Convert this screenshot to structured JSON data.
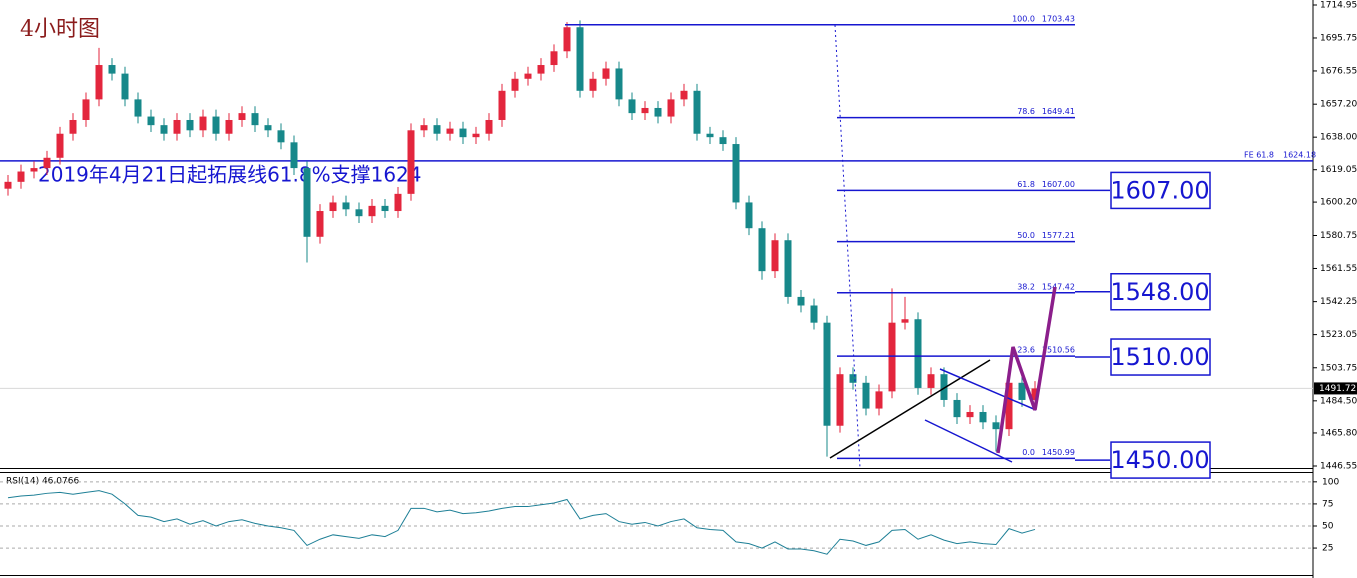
{
  "chart_data": [
    {
      "type": "candlestick",
      "title": "4小时图",
      "annotation": "2019年4月21日起拓展线61.8%支撑1624",
      "up_color": "#e3263d",
      "down_color": "#17888a",
      "open": [
        1608,
        1612,
        1618,
        1620,
        1626,
        1640,
        1648,
        1660,
        1680,
        1675,
        1660,
        1650,
        1645,
        1640,
        1648,
        1642,
        1650,
        1640,
        1648,
        1652,
        1645,
        1642,
        1635,
        1620,
        1580,
        1595,
        1600,
        1596,
        1592,
        1598,
        1595,
        1605,
        1642,
        1645,
        1640,
        1643,
        1638,
        1640,
        1648,
        1665,
        1672,
        1675,
        1680,
        1688,
        1702,
        1665,
        1672,
        1678,
        1660,
        1652,
        1655,
        1650,
        1660,
        1665,
        1640,
        1638,
        1634,
        1600,
        1585,
        1560,
        1578,
        1545,
        1540,
        1530,
        1470,
        1500,
        1495,
        1480,
        1490,
        1530,
        1532,
        1492,
        1500,
        1485,
        1475,
        1478,
        1472,
        1468,
        1495,
        1485
      ],
      "high": [
        1616,
        1622,
        1624,
        1630,
        1644,
        1652,
        1664,
        1690,
        1684,
        1679,
        1664,
        1654,
        1649,
        1652,
        1652,
        1654,
        1654,
        1652,
        1656,
        1656,
        1649,
        1646,
        1639,
        1624,
        1599,
        1604,
        1604,
        1600,
        1602,
        1602,
        1609,
        1646,
        1649,
        1649,
        1647,
        1647,
        1644,
        1652,
        1669,
        1676,
        1679,
        1684,
        1692,
        1705,
        1706,
        1676,
        1682,
        1682,
        1664,
        1659,
        1659,
        1664,
        1669,
        1669,
        1644,
        1642,
        1638,
        1604,
        1589,
        1582,
        1582,
        1549,
        1544,
        1534,
        1504,
        1504,
        1499,
        1494,
        1550,
        1545,
        1536,
        1504,
        1504,
        1489,
        1482,
        1482,
        1476,
        1499,
        1499,
        1496
      ],
      "low": [
        1604,
        1608,
        1614,
        1616,
        1622,
        1636,
        1644,
        1656,
        1671,
        1656,
        1646,
        1641,
        1636,
        1636,
        1638,
        1638,
        1636,
        1636,
        1644,
        1641,
        1638,
        1631,
        1616,
        1565,
        1576,
        1591,
        1592,
        1588,
        1588,
        1591,
        1591,
        1601,
        1638,
        1636,
        1636,
        1634,
        1634,
        1636,
        1644,
        1661,
        1668,
        1671,
        1676,
        1684,
        1661,
        1661,
        1668,
        1656,
        1648,
        1648,
        1646,
        1646,
        1656,
        1636,
        1634,
        1630,
        1596,
        1581,
        1555,
        1556,
        1541,
        1536,
        1526,
        1452,
        1466,
        1491,
        1476,
        1476,
        1486,
        1526,
        1488,
        1488,
        1481,
        1471,
        1471,
        1468,
        1455,
        1464,
        1481,
        1481
      ],
      "close": [
        1612,
        1618,
        1620,
        1626,
        1640,
        1648,
        1660,
        1680,
        1675,
        1660,
        1650,
        1645,
        1640,
        1648,
        1642,
        1650,
        1640,
        1648,
        1652,
        1645,
        1642,
        1635,
        1620,
        1580,
        1595,
        1600,
        1596,
        1592,
        1598,
        1595,
        1605,
        1642,
        1645,
        1640,
        1643,
        1638,
        1640,
        1648,
        1665,
        1672,
        1675,
        1680,
        1688,
        1702,
        1665,
        1672,
        1678,
        1660,
        1652,
        1655,
        1650,
        1660,
        1665,
        1640,
        1638,
        1634,
        1600,
        1585,
        1560,
        1578,
        1545,
        1540,
        1530,
        1470,
        1500,
        1495,
        1480,
        1490,
        1530,
        1532,
        1492,
        1500,
        1485,
        1475,
        1478,
        1472,
        1468,
        1495,
        1485,
        1491.72
      ],
      "ylim": [
        1445.39,
        1717.86
      ],
      "yticks": [
        1714.95,
        1695.75,
        1676.55,
        {
          "value": 1657.2,
          "label": "1657.20"
        },
        {
          "value": 1638,
          "label": "1638.00"
        },
        1619.05,
        {
          "value": 1600.2,
          "label": "1600.20"
        },
        1580.75,
        1561.55,
        1542.25,
        1523.05,
        1503.75,
        {
          "value": 1484.5,
          "label": "1484.50"
        },
        {
          "value": 1465.8,
          "label": "1465.80"
        },
        1446.55
      ],
      "last_price": 1491.72,
      "fib_levels": [
        {
          "ratio": "100.0",
          "price": 1703.43
        },
        {
          "ratio": "78.6",
          "price": 1649.41
        },
        {
          "ratio": "61.8",
          "price": {
            "value": 1607,
            "label": "1607.00"
          }
        },
        {
          "ratio": "50.0",
          "price": 1577.21
        },
        {
          "ratio": "38.2",
          "price": 1547.42
        },
        {
          "ratio": "23.6",
          "price": 1510.56
        },
        {
          "ratio": "0.0",
          "price": 1450.99
        }
      ],
      "fe": {
        "label": "FE 61.8",
        "value": 1624.18
      },
      "targets": [
        {
          "value": 1607,
          "label": "1607.00"
        },
        {
          "value": 1548,
          "label": "1548.00"
        },
        {
          "value": 1510,
          "label": "1510.00"
        },
        {
          "value": 1450,
          "label": "1450.00"
        }
      ]
    },
    {
      "type": "line",
      "label": "RSI(14) 46.0766",
      "color": "#1d7f96",
      "values": [
        82,
        84,
        85,
        87,
        88,
        86,
        88,
        90,
        86,
        75,
        62,
        60,
        55,
        58,
        52,
        56,
        50,
        55,
        57,
        53,
        50,
        48,
        45,
        28,
        35,
        40,
        38,
        36,
        40,
        38,
        45,
        70,
        70,
        66,
        68,
        64,
        65,
        67,
        70,
        72,
        72,
        74,
        76,
        80,
        58,
        62,
        64,
        55,
        52,
        54,
        50,
        55,
        58,
        48,
        46,
        45,
        32,
        30,
        25,
        32,
        24,
        24,
        22,
        18,
        35,
        33,
        28,
        32,
        45,
        46,
        35,
        40,
        34,
        30,
        32,
        30,
        29,
        47,
        42,
        46.0766
      ],
      "ylim": [
        -5.5,
        110
      ],
      "yticks": [
        100,
        75,
        50,
        25
      ]
    }
  ]
}
